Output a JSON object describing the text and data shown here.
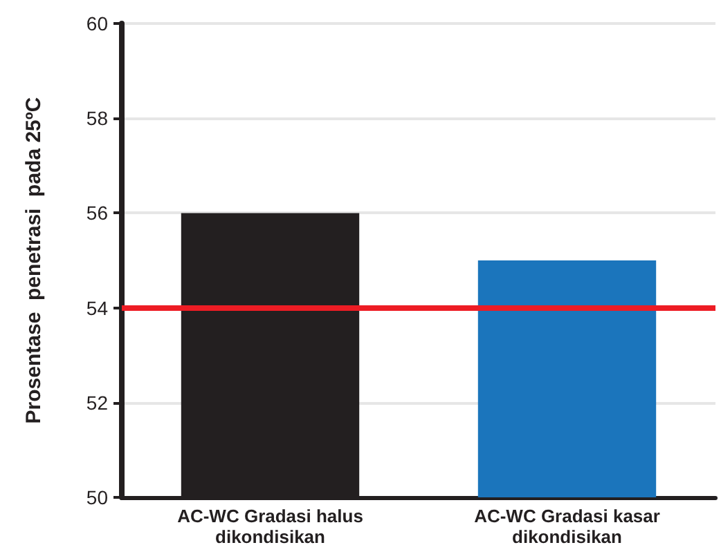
{
  "chart_data": {
    "type": "bar",
    "ylabel": "Prosentase  penetrasi  pada 25ºC",
    "categories": [
      "AC-WC Gradasi halus\ndikondisikan",
      "AC-WC Gradasi kasar\ndikondisikan"
    ],
    "values": [
      56,
      55
    ],
    "colors": [
      "#231f20",
      "#1b75bc"
    ],
    "ylim": [
      50,
      60
    ],
    "yticks": [
      50,
      52,
      54,
      56,
      58,
      60
    ],
    "grid": "y",
    "ref_lines": [
      {
        "axis": "y",
        "value": 54,
        "color": "#ed1c24",
        "line_style": "solid"
      }
    ]
  }
}
